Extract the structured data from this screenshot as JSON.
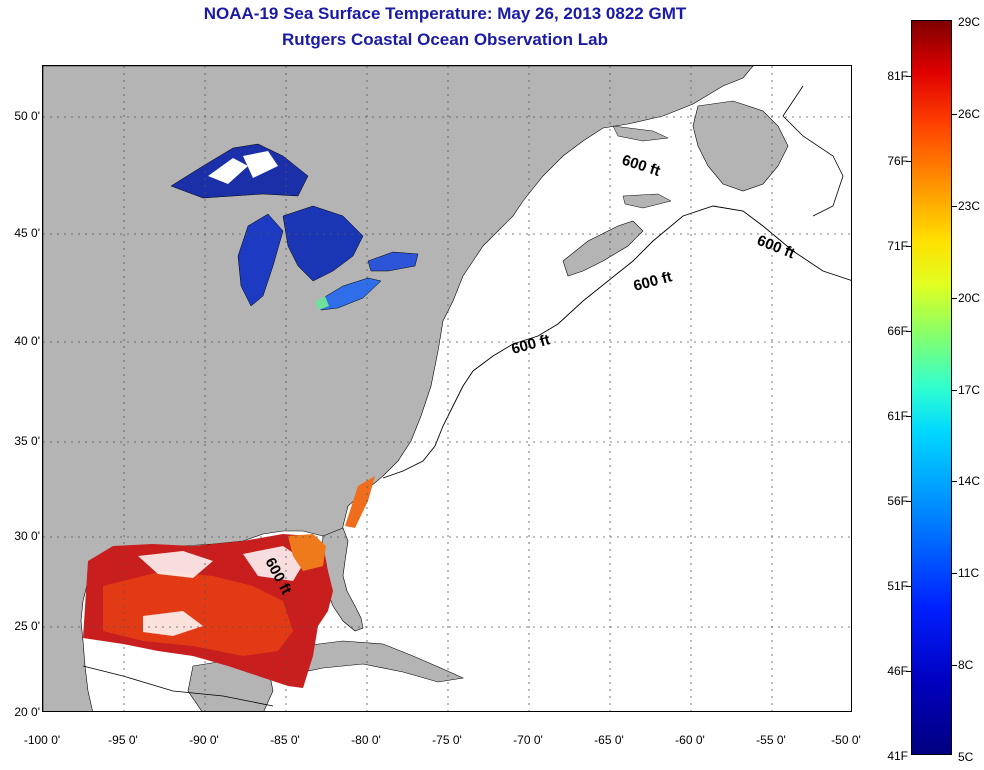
{
  "header": {
    "title": "NOAA-19 Sea Surface Temperature:  May 26, 2013 0822 GMT",
    "subtitle": "Rutgers Coastal Ocean Observation Lab"
  },
  "map": {
    "latitude_ticks": [
      "50 0'",
      "45 0'",
      "40 0'",
      "35 0'",
      "30 0'",
      "25 0'",
      "20 0'"
    ],
    "longitude_ticks": [
      "-100 0'",
      "-95 0'",
      "-90 0'",
      "-85 0'",
      "-80 0'",
      "-75 0'",
      "-70 0'",
      "-65 0'",
      "-60 0'",
      "-55 0'",
      "-50 0'"
    ],
    "contour_labels": [
      "600 ft",
      "600 ft",
      "600 ft",
      "600 ft",
      "600 ft"
    ],
    "land_color": "#b4b4b4",
    "no_data_color": "#ffffff",
    "grid": "dotted"
  },
  "colorbar": {
    "celsius_labels": [
      "29C",
      "26C",
      "23C",
      "20C",
      "17C",
      "14C",
      "11C",
      "8C",
      "5C"
    ],
    "fahrenheit_labels": [
      "81F",
      "76F",
      "71F",
      "66F",
      "61F",
      "56F",
      "51F",
      "46F",
      "41F"
    ],
    "min_color": "#000080",
    "max_color": "#800000"
  }
}
